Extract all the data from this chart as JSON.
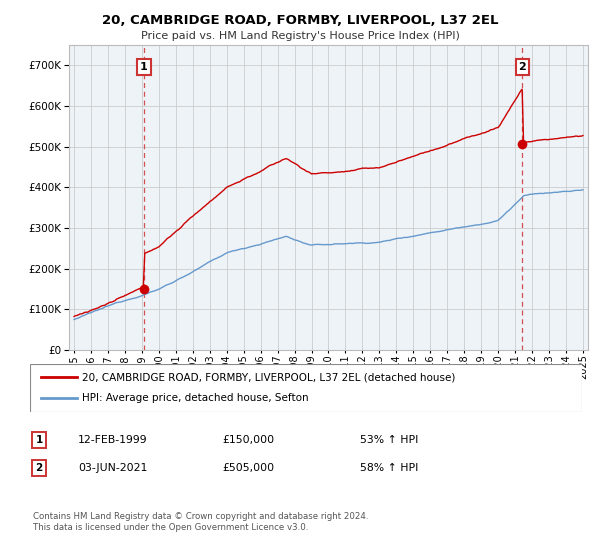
{
  "title": "20, CAMBRIDGE ROAD, FORMBY, LIVERPOOL, L37 2EL",
  "subtitle": "Price paid vs. HM Land Registry's House Price Index (HPI)",
  "legend_label_red": "20, CAMBRIDGE ROAD, FORMBY, LIVERPOOL, L37 2EL (detached house)",
  "legend_label_blue": "HPI: Average price, detached house, Sefton",
  "annotation1_date": "12-FEB-1999",
  "annotation1_price": "£150,000",
  "annotation1_hpi": "53% ↑ HPI",
  "annotation2_date": "03-JUN-2021",
  "annotation2_price": "£505,000",
  "annotation2_hpi": "58% ↑ HPI",
  "footnote": "Contains HM Land Registry data © Crown copyright and database right 2024.\nThis data is licensed under the Open Government Licence v3.0.",
  "sale1_x": 1999.12,
  "sale1_y": 150000,
  "sale2_x": 2021.42,
  "sale2_y": 505000,
  "red_color": "#cc0000",
  "blue_color": "#6699cc",
  "dashed_color": "#cc3333",
  "background_color": "#eef3f8",
  "grid_color": "#cccccc",
  "ylim": [
    0,
    750000
  ],
  "xlim_start": 1994.7,
  "xlim_end": 2025.3
}
